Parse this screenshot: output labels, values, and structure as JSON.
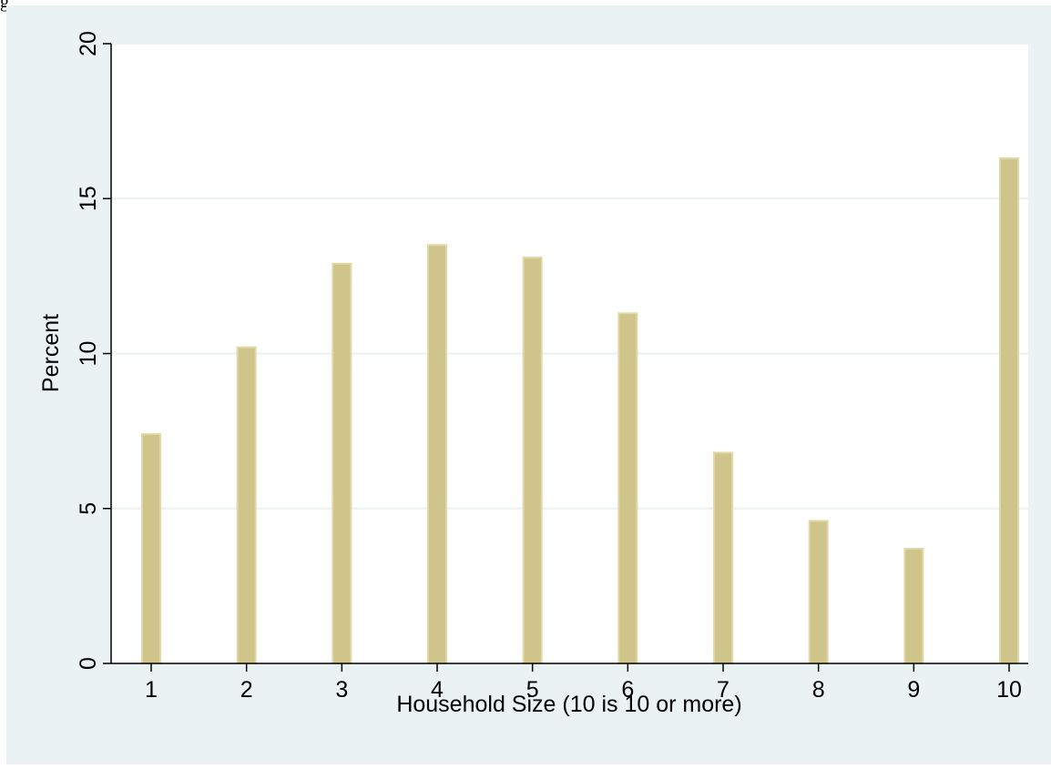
{
  "header_fragment": "g",
  "chart_data": {
    "type": "bar",
    "categories": [
      "1",
      "2",
      "3",
      "4",
      "5",
      "6",
      "7",
      "8",
      "9",
      "10"
    ],
    "values": [
      7.4,
      10.2,
      12.9,
      13.5,
      13.1,
      11.3,
      6.8,
      4.6,
      3.7,
      16.3
    ],
    "xlabel": "Household Size (10 is 10 or more)",
    "ylabel": "Percent",
    "ylim": [
      0,
      20
    ],
    "yticks": [
      "0",
      "5",
      "10",
      "15",
      "20"
    ],
    "grid": true,
    "bar_color": "#cfc48a",
    "bar_edge_color": "#e0d8a8",
    "plot_background": "#ffffff",
    "outer_background": "#eaf2f3",
    "grid_color": "#eaf2f3"
  }
}
